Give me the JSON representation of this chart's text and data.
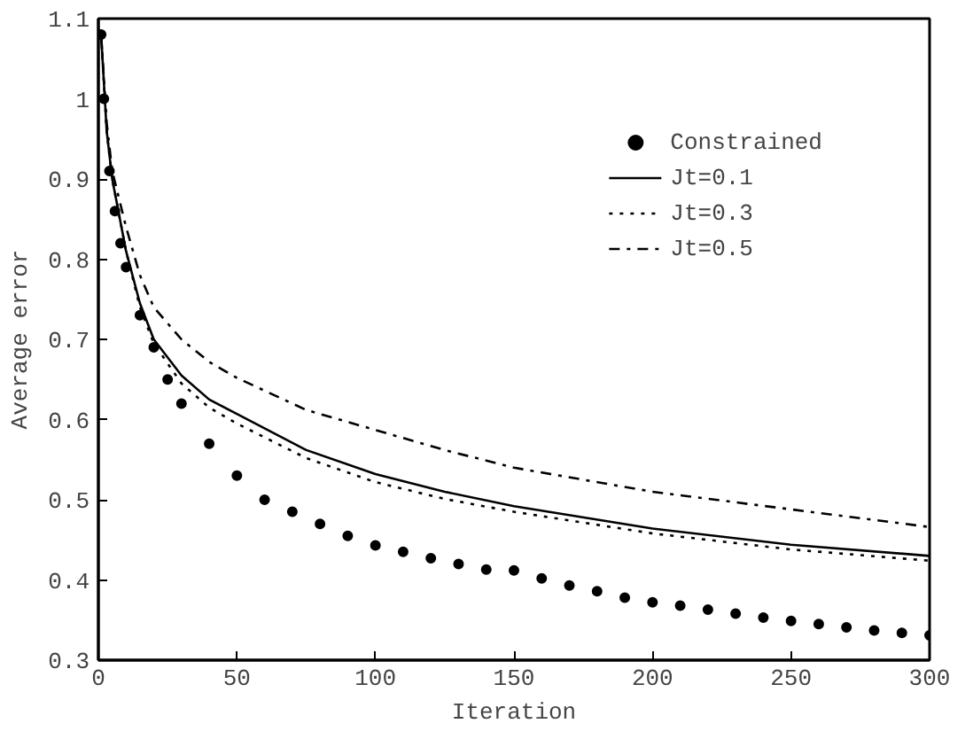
{
  "chart_data": {
    "type": "line",
    "xlabel": "Iteration",
    "ylabel": "Average error",
    "xlim": [
      0,
      300
    ],
    "xticks": [
      0,
      50,
      100,
      150,
      200,
      250,
      300
    ],
    "ylim": [
      0.3,
      1.1
    ],
    "yticks": [
      0.3,
      0.4,
      0.5,
      0.6,
      0.7,
      0.8,
      0.9,
      1,
      1.1
    ],
    "grid": false,
    "legend": "top right",
    "series": [
      {
        "name": "Constrained",
        "type": "scatter",
        "marker": "circle",
        "color": "#000000",
        "x": [
          1,
          2,
          4,
          6,
          8,
          10,
          15,
          20,
          25,
          30,
          40,
          50,
          60,
          70,
          80,
          90,
          100,
          110,
          120,
          130,
          140,
          150,
          160,
          170,
          180,
          190,
          200,
          210,
          220,
          230,
          240,
          250,
          260,
          270,
          280,
          290,
          300
        ],
        "values": [
          1.08,
          1.0,
          0.91,
          0.86,
          0.82,
          0.79,
          0.73,
          0.69,
          0.65,
          0.62,
          0.57,
          0.53,
          0.5,
          0.485,
          0.47,
          0.455,
          0.443,
          0.435,
          0.427,
          0.42,
          0.413,
          0.412,
          0.402,
          0.393,
          0.386,
          0.378,
          0.372,
          0.368,
          0.363,
          0.358,
          0.353,
          0.349,
          0.345,
          0.341,
          0.337,
          0.334,
          0.331
        ]
      },
      {
        "name": "Jt=0.1",
        "line_style": "solid",
        "color": "#000000",
        "x": [
          1,
          3,
          5,
          10,
          15,
          20,
          30,
          40,
          50,
          75,
          100,
          125,
          150,
          200,
          250,
          300
        ],
        "values": [
          1.08,
          0.96,
          0.9,
          0.81,
          0.745,
          0.7,
          0.655,
          0.625,
          0.607,
          0.562,
          0.532,
          0.51,
          0.492,
          0.464,
          0.444,
          0.43
        ]
      },
      {
        "name": "Jt=0.3",
        "line_style": "dotted",
        "color": "#000000",
        "x": [
          1,
          3,
          5,
          10,
          15,
          20,
          30,
          40,
          50,
          75,
          100,
          125,
          150,
          200,
          250,
          300
        ],
        "values": [
          1.08,
          0.96,
          0.9,
          0.81,
          0.74,
          0.695,
          0.645,
          0.615,
          0.595,
          0.552,
          0.522,
          0.501,
          0.485,
          0.458,
          0.438,
          0.424
        ]
      },
      {
        "name": "Jt=0.5",
        "line_style": "dashdot",
        "color": "#000000",
        "x": [
          1,
          3,
          5,
          10,
          15,
          20,
          30,
          40,
          50,
          75,
          100,
          125,
          150,
          200,
          250,
          300
        ],
        "values": [
          1.08,
          0.97,
          0.91,
          0.84,
          0.78,
          0.74,
          0.7,
          0.672,
          0.652,
          0.612,
          0.587,
          0.562,
          0.54,
          0.51,
          0.488,
          0.466
        ]
      }
    ]
  }
}
